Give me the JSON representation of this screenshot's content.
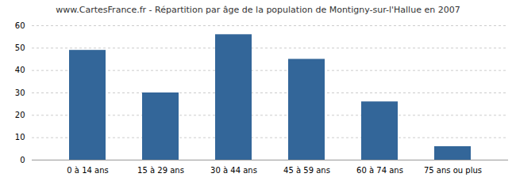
{
  "chart_data": {
    "type": "bar",
    "title": "www.CartesFrance.fr - Répartition par âge de la population de Montigny-sur-l'Hallue en 2007",
    "categories": [
      "0 à 14 ans",
      "15 à 29 ans",
      "30 à 44 ans",
      "45 à 59 ans",
      "60 à 74 ans",
      "75 ans ou plus"
    ],
    "values": [
      49,
      30,
      56,
      45,
      26,
      6
    ],
    "color": "#336699",
    "ylim": [
      0,
      60
    ],
    "yticks": [
      0,
      10,
      20,
      30,
      40,
      50,
      60
    ],
    "grid": true
  }
}
